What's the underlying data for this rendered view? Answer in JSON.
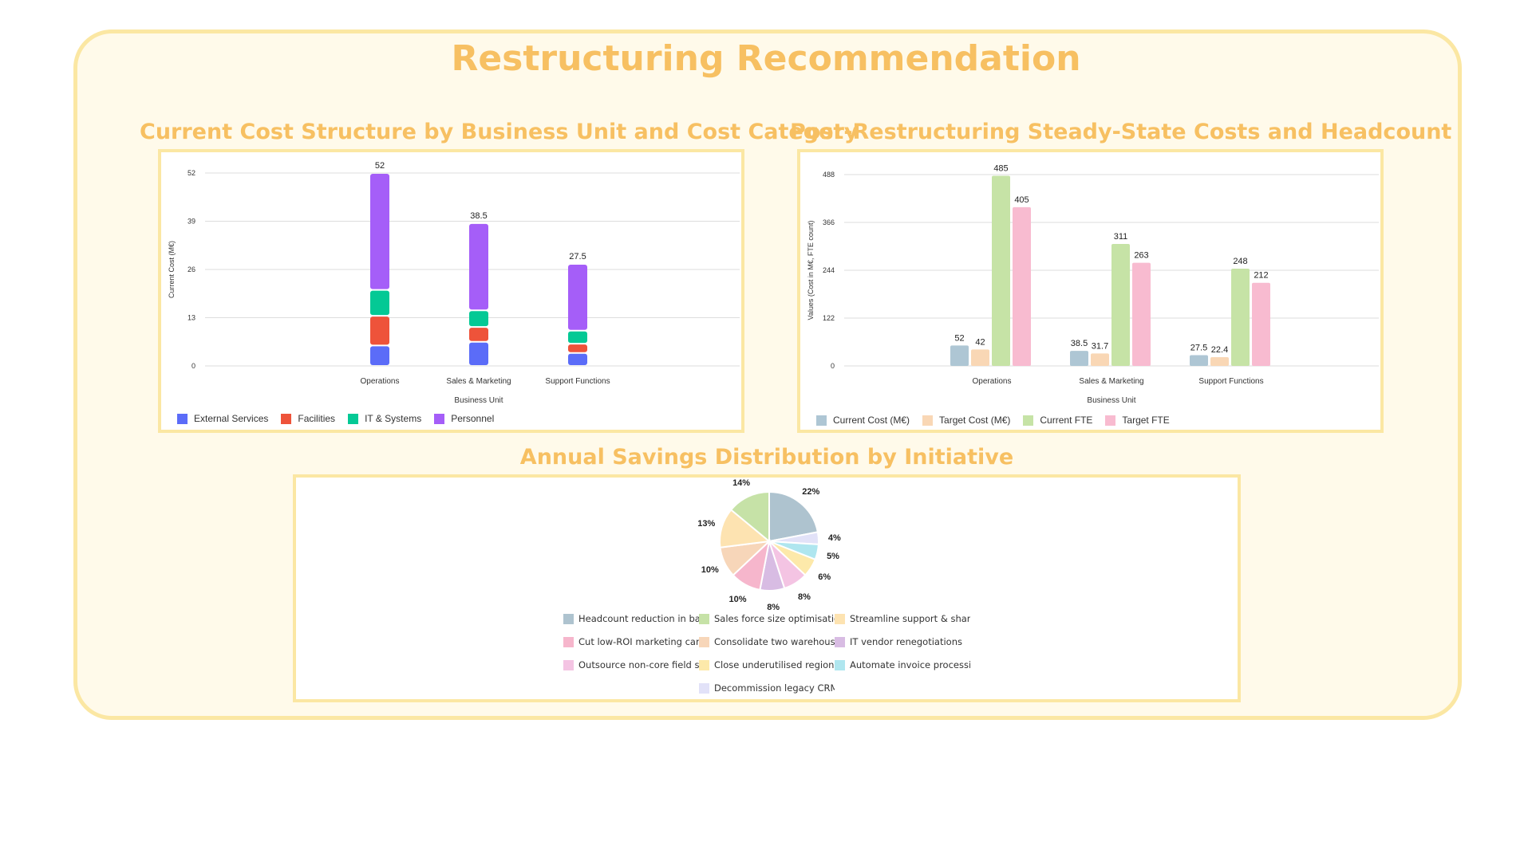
{
  "title": "Restructuring Recommendation",
  "chart_data": [
    {
      "type": "bar",
      "stacked": true,
      "title": "Current Cost Structure by Business Unit and Cost Category",
      "xlabel": "Business Unit",
      "ylabel": "Current Cost (M€)",
      "ylim": [
        0,
        52
      ],
      "yticks": [
        0,
        13,
        26,
        39,
        52
      ],
      "categories": [
        "Operations",
        "Sales & Marketing",
        "Support Functions"
      ],
      "totals": [
        "52",
        "38.5",
        "27.5"
      ],
      "series": [
        {
          "name": "External Services",
          "color": "#5b6cf8",
          "values": [
            5.5,
            6.5,
            3.5
          ]
        },
        {
          "name": "Facilities",
          "color": "#ee533a",
          "values": [
            8,
            4,
            2.5
          ]
        },
        {
          "name": "IT & Systems",
          "color": "#04c995",
          "values": [
            7,
            4.5,
            3.5
          ]
        },
        {
          "name": "Personnel",
          "color": "#a55ef8",
          "values": [
            31.5,
            23.5,
            18
          ]
        }
      ],
      "legend": "bottom-left"
    },
    {
      "type": "bar",
      "title": "Post-Restructuring Steady-State Costs and Headcount",
      "xlabel": "Business Unit",
      "ylabel": "Values (Cost in M€, FTE count)",
      "ylim": [
        0,
        488
      ],
      "yticks": [
        0,
        122,
        244,
        366,
        488
      ],
      "categories": [
        "Operations",
        "Sales & Marketing",
        "Support Functions"
      ],
      "series": [
        {
          "name": "Current Cost (M€)",
          "color": "#aec6d4",
          "values": [
            52,
            38.5,
            27.5
          ],
          "labels": [
            "52",
            "38.5",
            "27.5"
          ]
        },
        {
          "name": "Target Cost (M€)",
          "color": "#f9d7b5",
          "values": [
            42,
            31.7,
            22.4
          ],
          "labels": [
            "42",
            "31.7",
            "22.4"
          ]
        },
        {
          "name": "Current FTE",
          "color": "#c6e3a6",
          "values": [
            485,
            311,
            248
          ],
          "labels": [
            "485",
            "311",
            "248"
          ]
        },
        {
          "name": "Target FTE",
          "color": "#f8bbd0",
          "values": [
            405,
            263,
            212
          ],
          "labels": [
            "405",
            "263",
            "212"
          ]
        }
      ],
      "legend": "bottom-left"
    },
    {
      "type": "pie",
      "title": "Annual Savings Distribution by Initiative",
      "slices": [
        {
          "name": "Headcount reduction in back-office operations",
          "value": 22,
          "label": "22%",
          "color": "#aec3cf"
        },
        {
          "name": "Sales force size optimisation",
          "value": 14,
          "label": "14%",
          "color": "#c6e2a7"
        },
        {
          "name": "Streamline support & shared services",
          "value": 13,
          "label": "13%",
          "color": "#fde3b1"
        },
        {
          "name": "Cut low-ROI marketing campaigns",
          "value": 10,
          "label": "10%",
          "color": "#f6b6cc"
        },
        {
          "name": "Consolidate two warehouses",
          "value": 10,
          "label": "10%",
          "color": "#f7d6b9"
        },
        {
          "name": "IT vendor renegotiations",
          "value": 8,
          "label": "8%",
          "color": "#d8bce3"
        },
        {
          "name": "Outsource non-core field services",
          "value": 8,
          "label": "8%",
          "color": "#f4c4e3"
        },
        {
          "name": "Close underutilised regional offices",
          "value": 6,
          "label": "6%",
          "color": "#fde9aa"
        },
        {
          "name": "Automate invoice processing",
          "value": 5,
          "label": "5%",
          "color": "#afe6ef"
        },
        {
          "name": "Decommission legacy CRM licenses",
          "value": 4,
          "label": "4%",
          "color": "#e2e2f8"
        }
      ],
      "clockwise_order": [
        0,
        9,
        8,
        7,
        6,
        5,
        3,
        4,
        2,
        1
      ],
      "legend": "bottom"
    }
  ]
}
